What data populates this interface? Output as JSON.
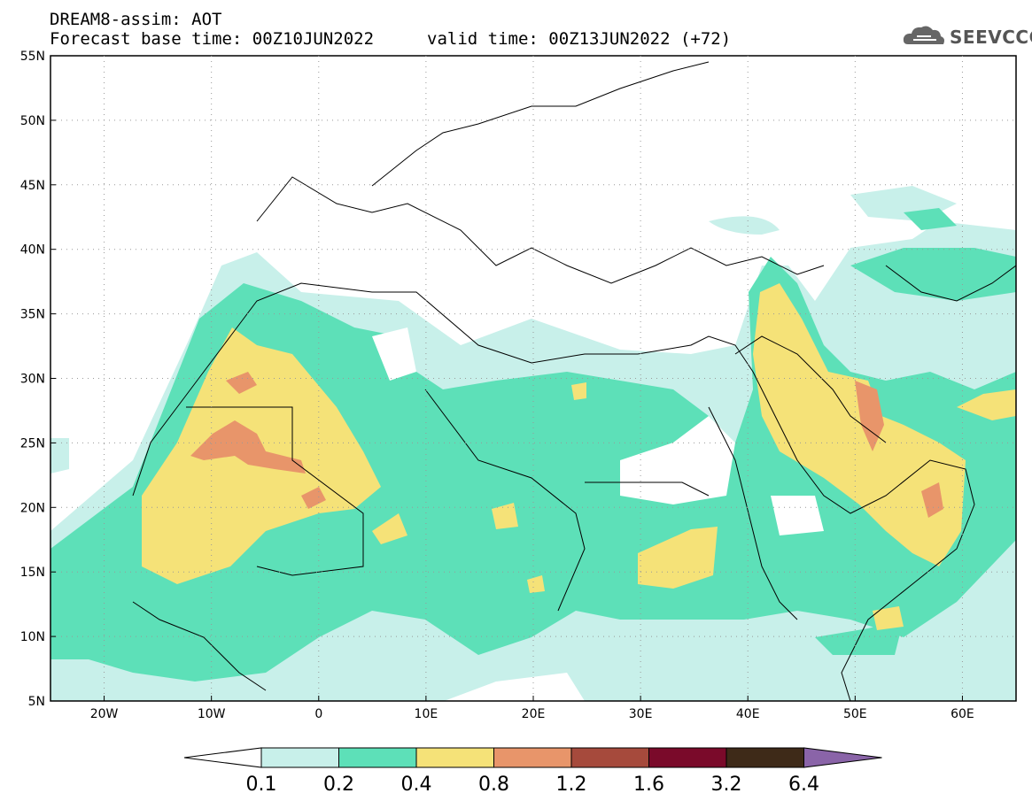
{
  "header": {
    "model_title": "DREAM8-assim: AOT",
    "base_time": "Forecast base time: 00Z10JUN2022",
    "valid_time": "valid time: 00Z13JUN2022 (+72)"
  },
  "logo": {
    "text": "SEEVCCC",
    "icon": "cloud-icon"
  },
  "map": {
    "lon_range": [
      -25,
      65
    ],
    "lat_range": [
      5,
      55
    ],
    "lat_labels": [
      "55N",
      "50N",
      "45N",
      "40N",
      "35N",
      "30N",
      "25N",
      "20N",
      "15N",
      "10N",
      "5N"
    ],
    "lon_labels": [
      "20W",
      "10W",
      "0",
      "10E",
      "20E",
      "30E",
      "40E",
      "50E",
      "60E"
    ]
  },
  "legend": {
    "thresholds": [
      "0.1",
      "0.2",
      "0.4",
      "0.8",
      "1.2",
      "1.6",
      "3.2",
      "6.4"
    ],
    "colors": [
      "#ffffff",
      "#c8f0ea",
      "#5de0b8",
      "#f5e278",
      "#e8956a",
      "#a64a3c",
      "#7a0a2a",
      "#3e2a18",
      "#8a64a8"
    ]
  }
}
